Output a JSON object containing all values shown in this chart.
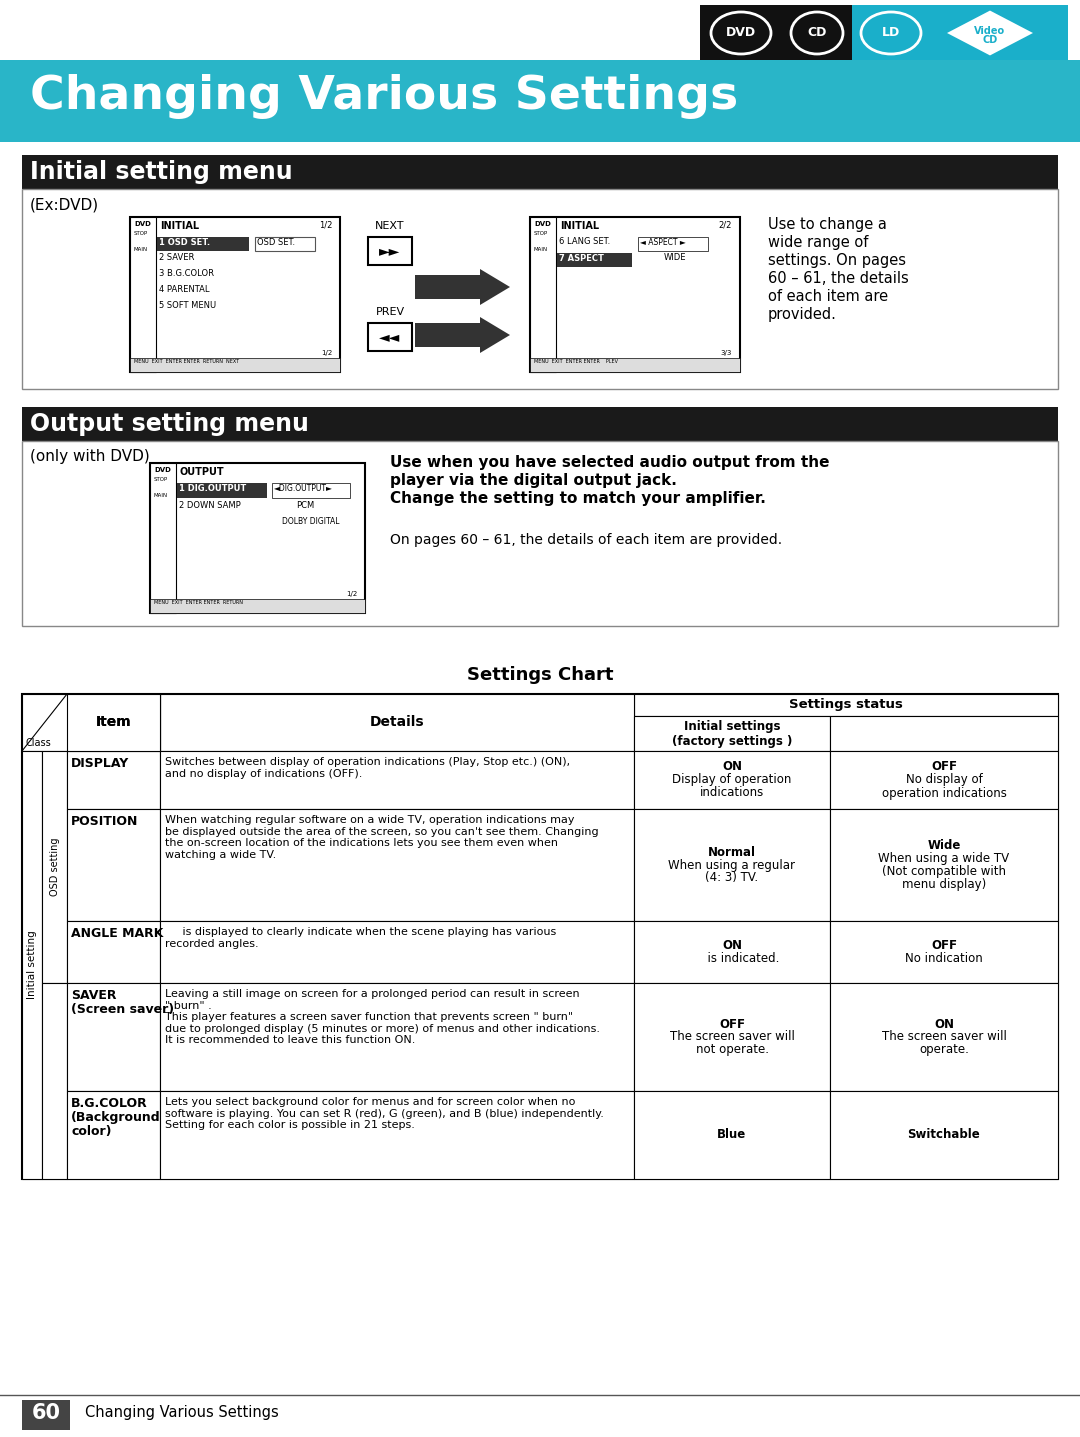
{
  "title": "Changing Various Settings",
  "title_bg_color": "#29B5C8",
  "title_text_color": "#FFFFFF",
  "page_bg_color": "#FFFFFF",
  "section1_title": "Initial setting menu",
  "section1_bg": "#1A1A1A",
  "section1_text_color": "#FFFFFF",
  "section2_title": "Output setting menu",
  "section2_bg": "#1A1A1A",
  "section2_text_color": "#FFFFFF",
  "chart_title": "Settings Chart",
  "footer_text": "60",
  "footer_sub": "Changing Various Settings",
  "rows": [
    {
      "item": "DISPLAY",
      "details": "Switches between display of operation indications (Play, Stop etc.) (ON),\nand no display of indications (OFF).",
      "initial": "ON\nDisplay of operation\nindications",
      "other": "OFF\nNo display of\noperation indications"
    },
    {
      "item": "POSITION",
      "details": "When watching regular software on a wide TV, operation indications may\nbe displayed outside the area of the screen, so you can't see them. Changing\nthe on-screen location of the indications lets you see them even when\nwatching a wide TV.",
      "initial": "Normal\nWhen using a regular\n(4: 3) TV.",
      "other": "Wide\nWhen using a wide TV\n(Not compatible with\nmenu display)"
    },
    {
      "item": "ANGLE MARK",
      "details": "     is displayed to clearly indicate when the scene playing has various\nrecorded angles.",
      "initial": "ON\n      is indicated.",
      "other": "OFF\nNo indication"
    },
    {
      "item": "SAVER\n(Screen saver)",
      "details": "Leaving a still image on screen for a prolonged period can result in screen\n\" burn\" .\nThis player features a screen saver function that prevents screen \" burn\"\ndue to prolonged display (5 minutes or more) of menus and other indications.\nIt is recommended to leave this function ON.",
      "initial": "OFF\nThe screen saver will\nnot operate.",
      "other": "ON\nThe screen saver will\noperate."
    },
    {
      "item": "B.G.COLOR\n(Background\ncolor)",
      "details": "Lets you select background color for menus and for screen color when no\nsoftware is playing. You can set R (red), G (green), and B (blue) independently.\nSetting for each color is possible in 21 steps.",
      "initial": "Blue",
      "other": "Switchable"
    }
  ]
}
